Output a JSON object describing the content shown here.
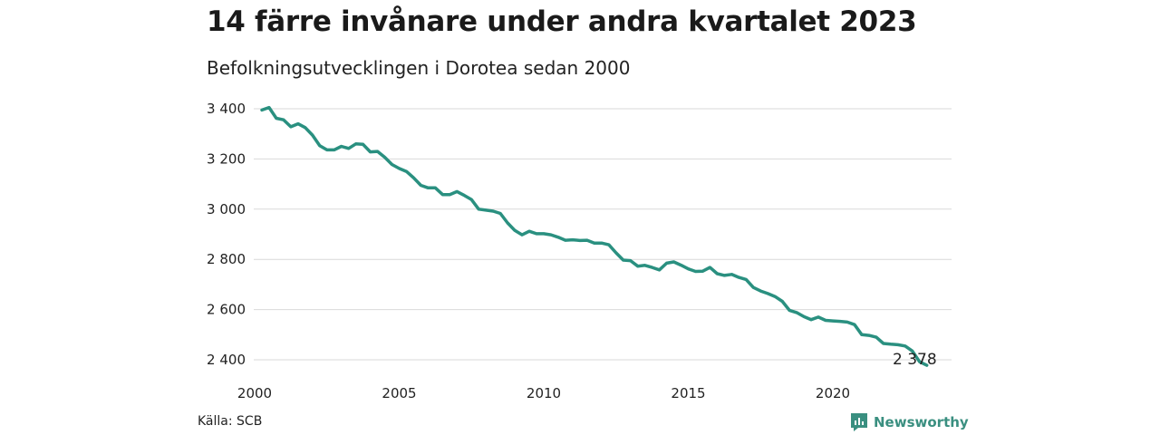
{
  "title": "14 färre invånare under andra kvartalet 2023",
  "subtitle": "Befolkningsutvecklingen i Dorotea sedan 2000",
  "source": "Källa: SCB",
  "brand": {
    "name": "Newsworthy",
    "color": "#3a8f80"
  },
  "chart_data": {
    "type": "line",
    "title": "14 färre invånare under andra kvartalet 2023",
    "subtitle": "Befolkningsutvecklingen i Dorotea sedan 2000",
    "xlim": [
      2000,
      2023.5
    ],
    "ylim": [
      2380,
      3420
    ],
    "x_ticks": [
      2000,
      2005,
      2010,
      2015,
      2020
    ],
    "x_tick_labels": [
      "2000",
      "2005",
      "2010",
      "2015",
      "2020"
    ],
    "y_ticks": [
      2400,
      2600,
      2800,
      3000,
      3200,
      3400
    ],
    "y_tick_labels": [
      "2 400",
      "2 600",
      "2 800",
      "3 000",
      "3 200",
      "3 400"
    ],
    "grid": true,
    "line_color": "#2a9080",
    "end_label": "2 378",
    "series": [
      {
        "x": [
          2000.25,
          2000.5,
          2000.75,
          2001.0,
          2001.25,
          2001.5,
          2001.75,
          2002.0,
          2002.25,
          2002.5,
          2002.75,
          2003.0,
          2003.25,
          2003.5,
          2003.75,
          2004.0,
          2004.25,
          2004.5,
          2004.75,
          2005.0,
          2005.25,
          2005.5,
          2005.75,
          2006.0,
          2006.25,
          2006.5,
          2006.75,
          2007.0,
          2007.25,
          2007.5,
          2007.75,
          2008.0,
          2008.25,
          2008.5,
          2008.75,
          2009.0,
          2009.25,
          2009.5,
          2009.75,
          2010.0,
          2010.25,
          2010.5,
          2010.75,
          2011.0,
          2011.25,
          2011.5,
          2011.75,
          2012.0,
          2012.25,
          2012.5,
          2012.75,
          2013.0,
          2013.25,
          2013.5,
          2013.75,
          2014.0,
          2014.25,
          2014.5,
          2014.75,
          2015.0,
          2015.25,
          2015.5,
          2015.75,
          2016.0,
          2016.25,
          2016.5,
          2016.75,
          2017.0,
          2017.25,
          2017.5,
          2017.75,
          2018.0,
          2018.25,
          2018.5,
          2018.75,
          2019.0,
          2019.25,
          2019.5,
          2019.75,
          2020.0,
          2020.25,
          2020.5,
          2020.75,
          2021.0,
          2021.25,
          2021.5,
          2021.75,
          2022.0,
          2022.25,
          2022.5,
          2022.75,
          2023.0,
          2023.25
        ],
        "values": [
          3395,
          3405,
          3362,
          3356,
          3328,
          3340,
          3325,
          3295,
          3253,
          3236,
          3236,
          3250,
          3242,
          3260,
          3258,
          3228,
          3230,
          3207,
          3178,
          3162,
          3150,
          3125,
          3095,
          3085,
          3085,
          3058,
          3058,
          3070,
          3055,
          3038,
          3000,
          2996,
          2992,
          2983,
          2945,
          2915,
          2898,
          2912,
          2902,
          2902,
          2898,
          2888,
          2876,
          2878,
          2875,
          2876,
          2865,
          2865,
          2858,
          2826,
          2797,
          2795,
          2773,
          2776,
          2768,
          2758,
          2785,
          2790,
          2777,
          2762,
          2752,
          2753,
          2768,
          2743,
          2736,
          2740,
          2728,
          2720,
          2688,
          2674,
          2664,
          2652,
          2633,
          2597,
          2588,
          2572,
          2560,
          2570,
          2557,
          2555,
          2553,
          2550,
          2540,
          2500,
          2497,
          2490,
          2465,
          2462,
          2460,
          2455,
          2435,
          2392,
          2378
        ]
      }
    ]
  }
}
